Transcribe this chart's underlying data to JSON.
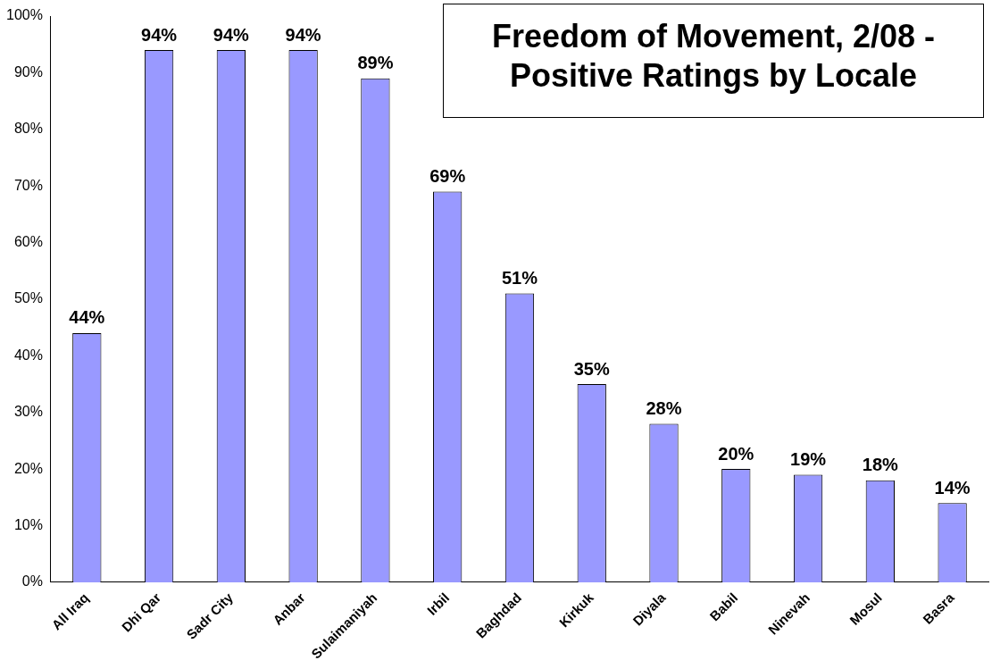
{
  "chart_data": {
    "type": "bar",
    "title": "Freedom of Movement, 2/08 - Positive Ratings by Locale",
    "categories": [
      "All Iraq",
      "Dhi Qar",
      "Sadr City",
      "Anbar",
      "Sulaimaniyah",
      "Irbil",
      "Baghdad",
      "Kirkuk",
      "Diyala",
      "Babil",
      "Ninevah",
      "Mosul",
      "Basra"
    ],
    "values": [
      44,
      94,
      94,
      94,
      89,
      69,
      51,
      35,
      28,
      20,
      19,
      18,
      14
    ],
    "value_labels": [
      "44%",
      "94%",
      "94%",
      "94%",
      "89%",
      "69%",
      "51%",
      "35%",
      "28%",
      "20%",
      "19%",
      "18%",
      "14%"
    ],
    "color": "#9999ff",
    "ylim": [
      0,
      100
    ],
    "yticks": [
      {
        "value": 0,
        "label": "0%"
      },
      {
        "value": 10,
        "label": "10%"
      },
      {
        "value": 20,
        "label": "20%"
      },
      {
        "value": 30,
        "label": "30%"
      },
      {
        "value": 40,
        "label": "40%"
      },
      {
        "value": 50,
        "label": "50%"
      },
      {
        "value": 60,
        "label": "60%"
      },
      {
        "value": 70,
        "label": "70%"
      },
      {
        "value": 80,
        "label": "80%"
      },
      {
        "value": 90,
        "label": "90%"
      },
      {
        "value": 100,
        "label": "100%"
      }
    ],
    "grid": false,
    "legend": false
  }
}
